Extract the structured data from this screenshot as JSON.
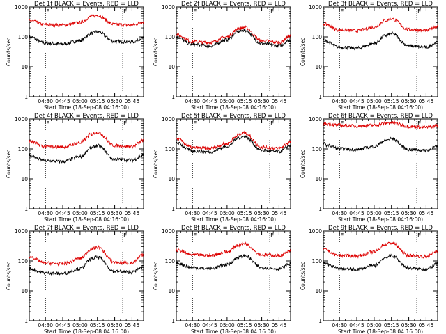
{
  "chart_data": [
    {
      "type": "line",
      "title": "Det 1f BLACK = Events, RED = LLD",
      "ylabel": "Counts/sec",
      "xlabel": "Start Time (18-Sep-08 04:16:00)",
      "x_ticks": [
        "04:30",
        "04:45",
        "05:00",
        "05:15",
        "05:30",
        "05:45"
      ],
      "y_ticks": [
        "1",
        "10",
        "100",
        "1000"
      ],
      "yscale": "log",
      "ylim": [
        1,
        1000
      ],
      "xlim": [
        "04:16",
        "05:55"
      ],
      "markers": [
        "04:30",
        "05:37"
      ],
      "marker_label": "E",
      "series": [
        {
          "color": "#000000",
          "x": [
            "04:16",
            "04:30",
            "04:45",
            "05:00",
            "05:10",
            "05:15",
            "05:30",
            "05:45",
            "05:55"
          ],
          "values": [
            100,
            62,
            58,
            75,
            130,
            150,
            70,
            68,
            92
          ]
        },
        {
          "color": "#dd0000",
          "x": [
            "04:16",
            "04:30",
            "04:45",
            "05:00",
            "05:10",
            "05:15",
            "05:30",
            "05:45",
            "05:55"
          ],
          "values": [
            350,
            255,
            245,
            300,
            480,
            520,
            260,
            245,
            320
          ]
        }
      ]
    },
    {
      "type": "line",
      "title": "Det 2f BLACK = Events, RED = LLD",
      "ylabel": "Counts/sec",
      "xlabel": "Start Time (18-Sep-08 04:16:00)",
      "x_ticks": [
        "04:30",
        "04:45",
        "05:00",
        "05:15",
        "05:30",
        "05:45"
      ],
      "y_ticks": [
        "1",
        "10",
        "100",
        "1000"
      ],
      "yscale": "log",
      "ylim": [
        1,
        1000
      ],
      "xlim": [
        "04:16",
        "05:55"
      ],
      "markers": [
        "04:30",
        "05:37"
      ],
      "marker_label": "E",
      "series": [
        {
          "color": "#000000",
          "x": [
            "04:16",
            "04:30",
            "04:45",
            "05:00",
            "05:10",
            "05:15",
            "05:30",
            "05:45",
            "05:55"
          ],
          "values": [
            100,
            55,
            50,
            80,
            150,
            165,
            60,
            50,
            80
          ]
        },
        {
          "color": "#dd0000",
          "x": [
            "04:16",
            "04:30",
            "04:45",
            "05:00",
            "05:10",
            "05:15",
            "05:30",
            "05:45",
            "05:55"
          ],
          "values": [
            120,
            70,
            65,
            100,
            190,
            210,
            75,
            65,
            110
          ]
        }
      ]
    },
    {
      "type": "line",
      "title": "Det 3f BLACK = Events, RED = LLD",
      "ylabel": "Counts/sec",
      "xlabel": "Start Time (18-Sep-08 04:16:00)",
      "x_ticks": [
        "04:30",
        "04:45",
        "05:00",
        "05:15",
        "05:30",
        "05:45"
      ],
      "y_ticks": [
        "1",
        "10",
        "100",
        "1000"
      ],
      "yscale": "log",
      "ylim": [
        1,
        1000
      ],
      "xlim": [
        "04:16",
        "05:55"
      ],
      "markers": [
        "04:30",
        "05:37"
      ],
      "marker_label": "E",
      "series": [
        {
          "color": "#000000",
          "x": [
            "04:16",
            "04:30",
            "04:45",
            "05:00",
            "05:10",
            "05:15",
            "05:30",
            "05:45",
            "05:55"
          ],
          "values": [
            75,
            45,
            42,
            60,
            110,
            130,
            50,
            45,
            65
          ]
        },
        {
          "color": "#dd0000",
          "x": [
            "04:16",
            "04:30",
            "04:45",
            "05:00",
            "05:10",
            "05:15",
            "05:30",
            "05:45",
            "05:55"
          ],
          "values": [
            270,
            170,
            160,
            210,
            360,
            400,
            175,
            160,
            230
          ]
        }
      ]
    },
    {
      "type": "line",
      "title": "Det 4f BLACK = Events, RED = LLD",
      "ylabel": "Counts/sec",
      "xlabel": "Start Time (18-Sep-08 04:16:00)",
      "x_ticks": [
        "04:30",
        "04:45",
        "05:00",
        "05:15",
        "05:30",
        "05:45"
      ],
      "y_ticks": [
        "1",
        "10",
        "100",
        "1000"
      ],
      "yscale": "log",
      "ylim": [
        1,
        1000
      ],
      "xlim": [
        "04:16",
        "05:55"
      ],
      "markers": [
        "04:30",
        "05:37"
      ],
      "marker_label": "E",
      "series": [
        {
          "color": "#000000",
          "x": [
            "04:16",
            "04:30",
            "04:45",
            "05:00",
            "05:10",
            "05:15",
            "05:30",
            "05:45",
            "05:55"
          ],
          "values": [
            60,
            40,
            38,
            55,
            110,
            130,
            45,
            42,
            60
          ]
        },
        {
          "color": "#dd0000",
          "x": [
            "04:16",
            "04:30",
            "04:45",
            "05:00",
            "05:10",
            "05:15",
            "05:30",
            "05:45",
            "05:55"
          ],
          "values": [
            180,
            120,
            115,
            160,
            310,
            360,
            130,
            120,
            190
          ]
        }
      ]
    },
    {
      "type": "line",
      "title": "Det 5f BLACK = Events, RED = LLD",
      "ylabel": "Counts/sec",
      "xlabel": "Start Time (18-Sep-08 04:16:00)",
      "x_ticks": [
        "04:30",
        "04:45",
        "05:00",
        "05:15",
        "05:30",
        "05:45"
      ],
      "y_ticks": [
        "1",
        "10",
        "100",
        "1000"
      ],
      "yscale": "log",
      "ylim": [
        1,
        1000
      ],
      "xlim": [
        "04:16",
        "05:55"
      ],
      "markers": [
        "04:30",
        "05:37"
      ],
      "marker_label": "E",
      "series": [
        {
          "color": "#000000",
          "x": [
            "04:16",
            "04:30",
            "04:45",
            "05:00",
            "05:10",
            "05:15",
            "05:30",
            "05:45",
            "05:55"
          ],
          "values": [
            160,
            85,
            80,
            120,
            230,
            260,
            90,
            80,
            130
          ]
        },
        {
          "color": "#dd0000",
          "x": [
            "04:16",
            "04:30",
            "04:45",
            "05:00",
            "05:10",
            "05:15",
            "05:30",
            "05:45",
            "05:55"
          ],
          "values": [
            220,
            110,
            105,
            150,
            300,
            340,
            115,
            105,
            170
          ]
        }
      ]
    },
    {
      "type": "line",
      "title": "Det 6f BLACK = Events, RED = LLD",
      "ylabel": "Counts/sec",
      "xlabel": "Start Time (18-Sep-08 04:16:00)",
      "x_ticks": [
        "04:30",
        "04:45",
        "05:00",
        "05:15",
        "05:30",
        "05:45"
      ],
      "y_ticks": [
        "1",
        "10",
        "100",
        "1000"
      ],
      "yscale": "log",
      "ylim": [
        1,
        1000
      ],
      "xlim": [
        "04:16",
        "05:55"
      ],
      "markers": [
        "04:30",
        "05:37"
      ],
      "marker_label": "E",
      "series": [
        {
          "color": "#000000",
          "x": [
            "04:16",
            "04:20",
            "04:30",
            "04:45",
            "05:00",
            "05:10",
            "05:15",
            "05:30",
            "05:45",
            "05:55"
          ],
          "values": [
            150,
            130,
            100,
            95,
            120,
            190,
            220,
            95,
            90,
            120
          ]
        },
        {
          "color": "#dd0000",
          "x": [
            "04:16",
            "04:30",
            "04:45",
            "05:00",
            "05:10",
            "05:15",
            "05:30",
            "05:45",
            "05:55"
          ],
          "values": [
            700,
            620,
            580,
            620,
            720,
            760,
            560,
            520,
            600
          ]
        }
      ]
    },
    {
      "type": "line",
      "title": "Det 7f BLACK = Events, RED = LLD",
      "ylabel": "Counts/sec",
      "xlabel": "Start Time (18-Sep-08 04:16:00)",
      "x_ticks": [
        "04:30",
        "04:45",
        "05:00",
        "05:15",
        "05:30",
        "05:45"
      ],
      "y_ticks": [
        "1",
        "10",
        "100",
        "1000"
      ],
      "yscale": "log",
      "ylim": [
        1,
        1000
      ],
      "xlim": [
        "04:16",
        "05:55"
      ],
      "markers": [
        "04:30",
        "05:37"
      ],
      "marker_label": "E",
      "series": [
        {
          "color": "#000000",
          "x": [
            "04:16",
            "04:30",
            "04:45",
            "05:00",
            "05:10",
            "05:15",
            "05:30",
            "05:45",
            "05:55"
          ],
          "values": [
            55,
            40,
            38,
            55,
            115,
            135,
            45,
            42,
            65
          ]
        },
        {
          "color": "#dd0000",
          "x": [
            "04:16",
            "04:30",
            "04:45",
            "05:00",
            "05:10",
            "05:15",
            "05:30",
            "05:45",
            "05:55"
          ],
          "values": [
            140,
            85,
            80,
            120,
            250,
            290,
            90,
            85,
            160
          ]
        }
      ]
    },
    {
      "type": "line",
      "title": "Det 8f BLACK = Events, RED = LLD",
      "ylabel": "Counts/sec",
      "xlabel": "Start Time (18-Sep-08 04:16:00)",
      "x_ticks": [
        "04:30",
        "04:45",
        "05:00",
        "05:15",
        "05:30",
        "05:45"
      ],
      "y_ticks": [
        "1",
        "10",
        "100",
        "1000"
      ],
      "yscale": "log",
      "ylim": [
        1,
        1000
      ],
      "xlim": [
        "04:16",
        "05:55"
      ],
      "markers": [
        "04:30",
        "05:37"
      ],
      "marker_label": "E",
      "series": [
        {
          "color": "#000000",
          "x": [
            "04:16",
            "04:30",
            "04:45",
            "05:00",
            "05:10",
            "05:15",
            "05:30",
            "05:45",
            "05:55"
          ],
          "values": [
            85,
            60,
            55,
            75,
            130,
            150,
            60,
            55,
            80
          ]
        },
        {
          "color": "#dd0000",
          "x": [
            "04:16",
            "04:30",
            "04:45",
            "05:00",
            "05:10",
            "05:15",
            "05:30",
            "05:45",
            "05:55"
          ],
          "values": [
            230,
            160,
            150,
            200,
            340,
            380,
            160,
            150,
            210
          ]
        }
      ]
    },
    {
      "type": "line",
      "title": "Det 9f BLACK = Events, RED = LLD",
      "ylabel": "Counts/sec",
      "xlabel": "Start Time (18-Sep-08 04:16:00)",
      "x_ticks": [
        "04:30",
        "04:45",
        "05:00",
        "05:15",
        "05:30",
        "05:45"
      ],
      "y_ticks": [
        "1",
        "10",
        "100",
        "1000"
      ],
      "yscale": "log",
      "ylim": [
        1,
        1000
      ],
      "xlim": [
        "04:16",
        "05:55"
      ],
      "markers": [
        "04:30",
        "05:37"
      ],
      "marker_label": "E",
      "series": [
        {
          "color": "#000000",
          "x": [
            "04:16",
            "04:30",
            "04:45",
            "05:00",
            "05:10",
            "05:15",
            "05:30",
            "05:45",
            "05:55"
          ],
          "values": [
            85,
            55,
            52,
            70,
            130,
            150,
            58,
            52,
            80
          ]
        },
        {
          "color": "#dd0000",
          "x": [
            "04:16",
            "04:30",
            "04:45",
            "05:00",
            "05:10",
            "05:15",
            "05:30",
            "05:45",
            "05:55"
          ],
          "values": [
            240,
            150,
            145,
            200,
            360,
            400,
            150,
            140,
            210
          ]
        }
      ]
    }
  ]
}
